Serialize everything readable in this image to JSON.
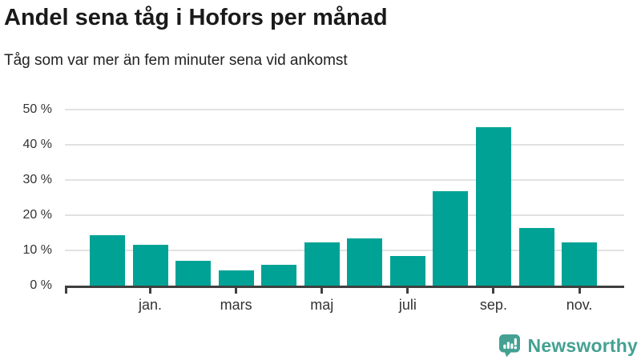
{
  "header": {
    "title": "Andel sena tåg i Hofors per månad",
    "subtitle": "Tåg som var mer än fem minuter sena vid ankomst"
  },
  "chart_data": {
    "type": "bar",
    "title": "Andel sena tåg i Hofors per månad",
    "subtitle": "Tåg som var mer än fem minuter sena vid ankomst",
    "values": [
      14.3,
      11.6,
      7.0,
      4.3,
      5.9,
      12.2,
      13.4,
      8.4,
      26.9,
      45.0,
      16.3,
      12.2
    ],
    "bar_count": 12,
    "x_tick_labels": [
      "jan.",
      "mars",
      "maj",
      "juli",
      "sep.",
      "nov."
    ],
    "x_tick_bar_indexes": [
      1,
      3,
      5,
      7,
      9,
      11
    ],
    "y_ticks": [
      0,
      10,
      20,
      30,
      40,
      50
    ],
    "y_tick_labels": [
      "0 %",
      "10 %",
      "20 %",
      "30 %",
      "40 %",
      "50 %"
    ],
    "y_unit": "%",
    "ylim": [
      0,
      50
    ],
    "grid": true,
    "legend": false,
    "bar_color": "#00a296",
    "axis_color": "#3f3f3f",
    "grid_color": "#e2e2e2",
    "label_color": "#333333"
  },
  "footer": {
    "brand": "Newsworthy",
    "brand_color": "#44a192",
    "logo_icon": "speech-bubble-bar-chart-icon"
  }
}
